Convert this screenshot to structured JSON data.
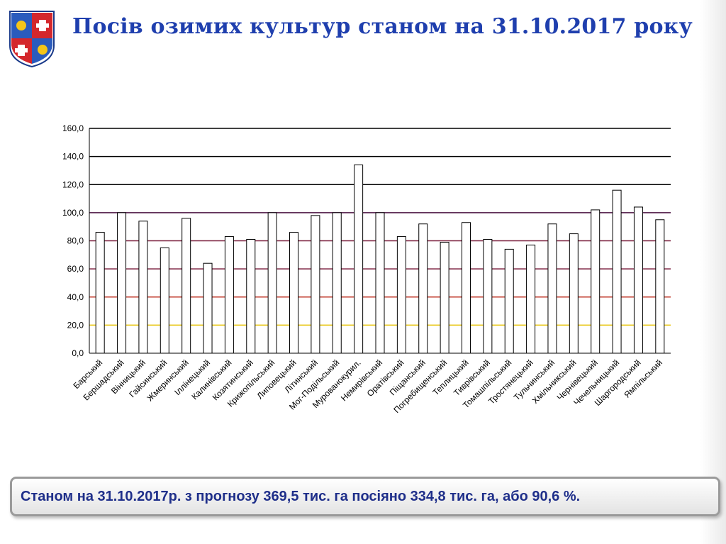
{
  "header": {
    "title": "Посів озимих культур станом на 31.10.2017 року"
  },
  "summary": {
    "text": "Станом на 31.10.2017р. з прогнозу 369,5 тис. га посіяно 334,8 тис. га, або 90,6 %."
  },
  "chart_data": {
    "type": "bar",
    "title": "",
    "xlabel": "",
    "ylabel": "",
    "ylim": [
      0,
      160
    ],
    "yticks": [
      "0,0",
      "20,0",
      "40,0",
      "60,0",
      "80,0",
      "100,0",
      "120,0",
      "140,0",
      "160,0"
    ],
    "grid": true,
    "grid_colors": [
      "#000000",
      "#e6c200",
      "#c0392b",
      "#7a1f3d",
      "#7a1f3d",
      "#4a1240",
      "#000000",
      "#000000",
      "#000000"
    ],
    "categories": [
      "Барський",
      "Бершадський",
      "Вінницький",
      "Гайсинський",
      "Жмеринський",
      "Іллінецький",
      "Калинівський",
      "Козятинський",
      "Крижопільський",
      "Липовецький",
      "Літинський",
      "Мог-Подільський",
      "Мурованокурил.",
      "Немирівський",
      "Оратівський",
      "Піщанський",
      "Погребищенський",
      "Теплицький",
      "Тиврівський",
      "Томашпільський",
      "Тростянецький",
      "Тульчинський",
      "Хмільникський",
      "Чернівецький",
      "Чечельницький",
      "Шаргородський",
      "Ямпільський"
    ],
    "values": [
      86,
      100,
      94,
      75,
      96,
      64,
      83,
      81,
      100,
      86,
      98,
      100,
      134,
      100,
      83,
      92,
      79,
      93,
      81,
      74,
      77,
      92,
      85,
      102,
      116,
      104,
      95
    ],
    "bar_fill": "#ffffff",
    "bar_stroke": "#000000"
  }
}
